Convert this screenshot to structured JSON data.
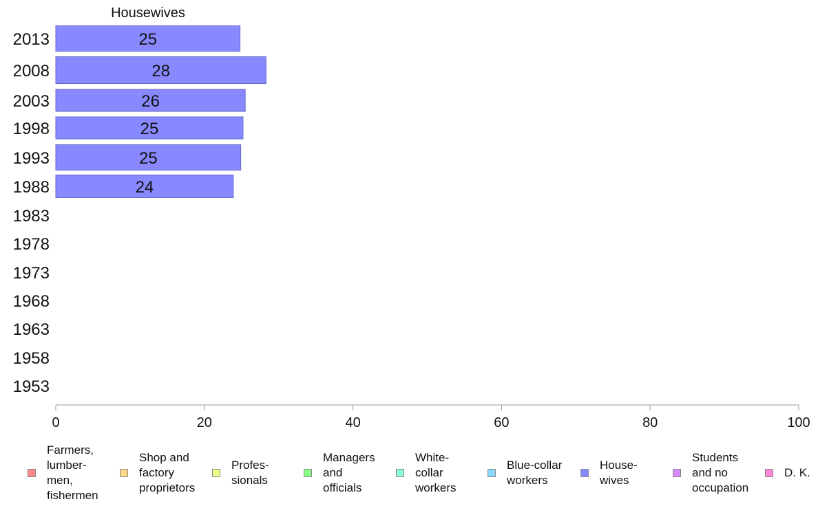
{
  "chart_data": {
    "type": "bar",
    "orientation": "horizontal",
    "title": "Housewives",
    "categories": [
      "2013",
      "2008",
      "2003",
      "1998",
      "1993",
      "1988",
      "1983",
      "1978",
      "1973",
      "1968",
      "1963",
      "1958",
      "1953"
    ],
    "values": [
      25,
      28,
      26,
      25,
      25,
      24,
      null,
      null,
      null,
      null,
      null,
      null,
      null
    ],
    "data_labels": [
      "25",
      "28",
      "26",
      "25",
      "25",
      "24",
      "",
      "",
      "",
      "",
      "",
      "",
      ""
    ],
    "precise_values": [
      24.8,
      28.3,
      25.5,
      25.2,
      24.9,
      23.9,
      null,
      null,
      null,
      null,
      null,
      null,
      null
    ],
    "xlim": [
      0,
      100
    ],
    "xticks": [
      0,
      20,
      40,
      60,
      80,
      100
    ],
    "series_color": "#8888ff",
    "grid": false
  },
  "legend": {
    "items": [
      {
        "label": "Farmers,\nlumber-\nmen,\nfishermen",
        "color": "#ff8888"
      },
      {
        "label": "Shop and\nfactory\nproprietors",
        "color": "#ffd888"
      },
      {
        "label": "Profes-\nsionals",
        "color": "#e8ff88"
      },
      {
        "label": "Managers\nand\nofficials",
        "color": "#88ff88"
      },
      {
        "label": "White-\ncollar\nworkers",
        "color": "#88ffd8"
      },
      {
        "label": "Blue-collar\nworkers",
        "color": "#88d8ff"
      },
      {
        "label": "House-\nwives",
        "color": "#8888ff"
      },
      {
        "label": "Students\nand no\noccupation",
        "color": "#d888ff"
      },
      {
        "label": "D. K.",
        "color": "#ff88d8"
      }
    ]
  }
}
